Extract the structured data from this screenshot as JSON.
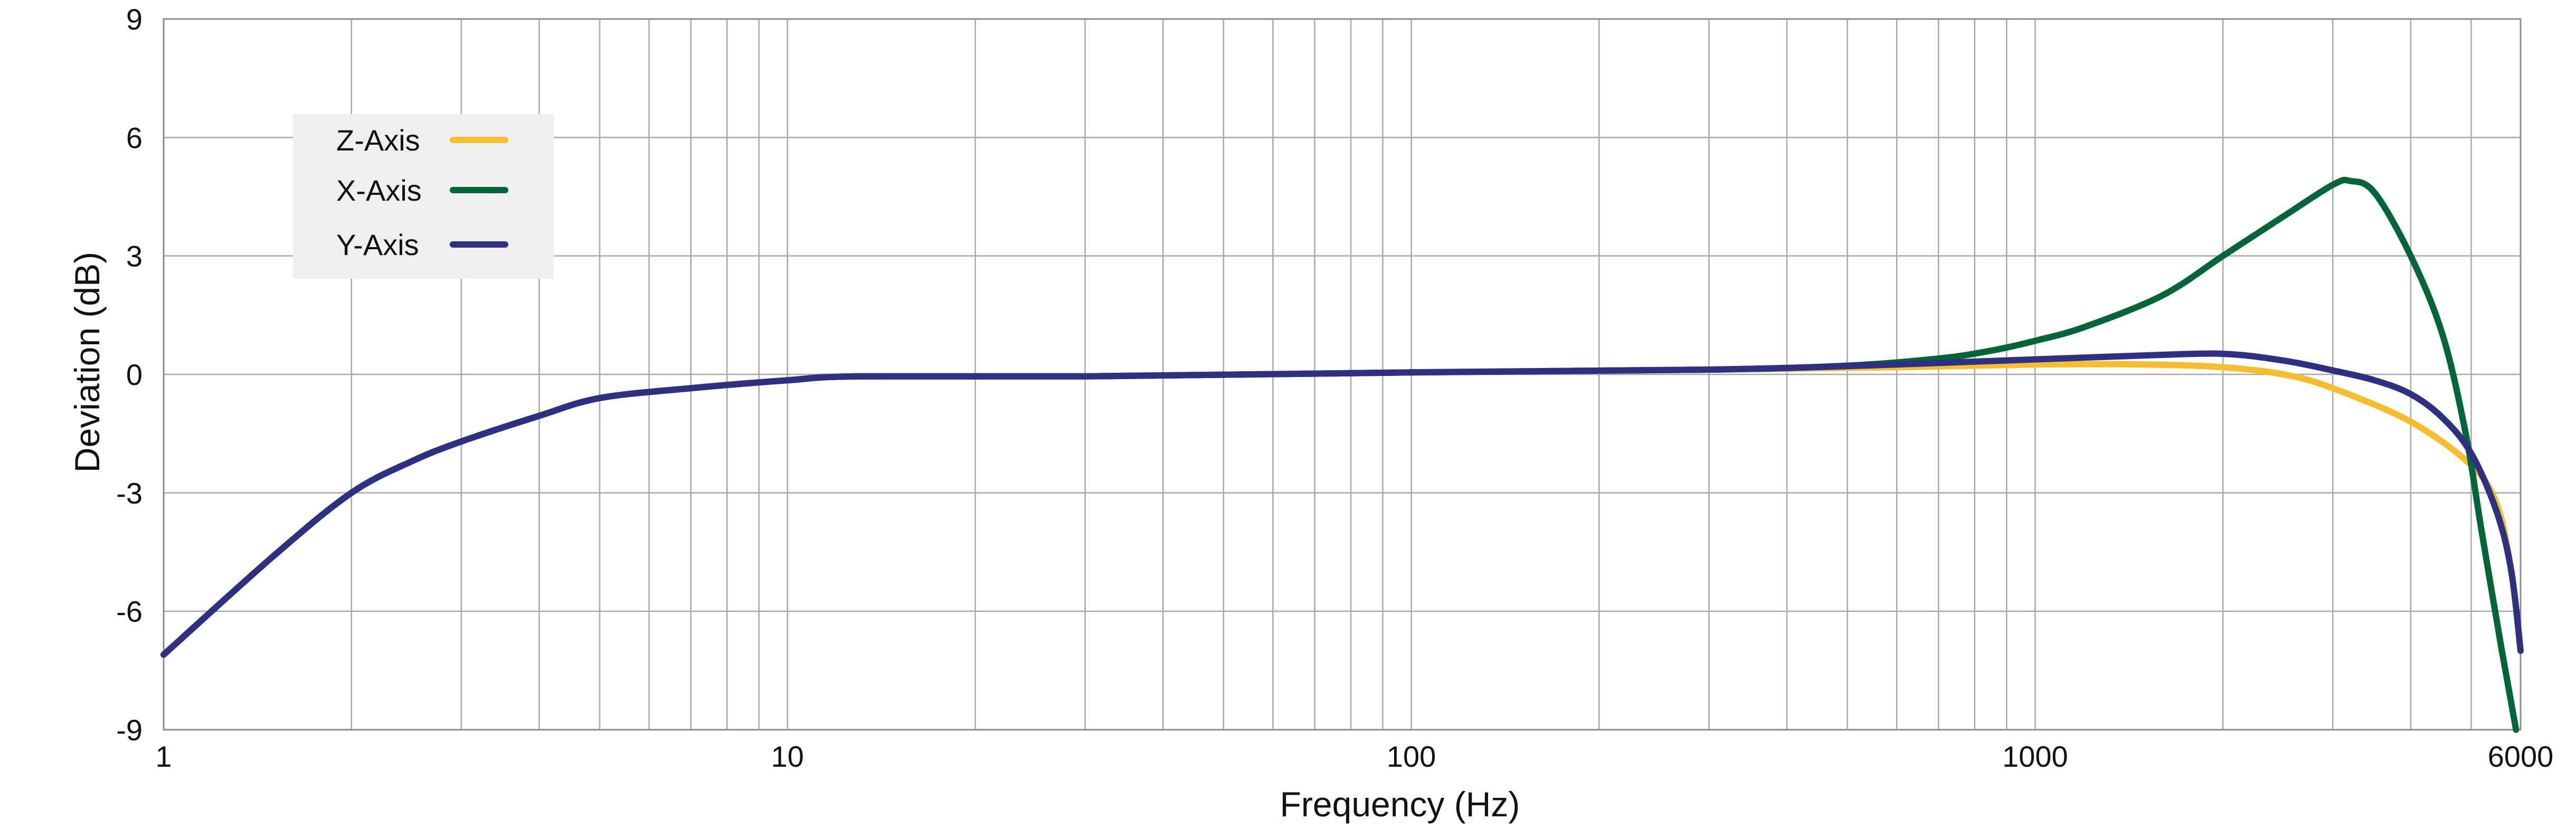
{
  "chart_data": {
    "type": "line",
    "title": "",
    "xlabel": "Frequency (Hz)",
    "ylabel": "Deviation (dB)",
    "x_scale": "log",
    "xlim": [
      1,
      6000
    ],
    "ylim": [
      -9,
      9
    ],
    "x_major_ticks": [
      {
        "value": 1,
        "label": "1"
      },
      {
        "value": 10,
        "label": "10"
      },
      {
        "value": 100,
        "label": "100"
      },
      {
        "value": 1000,
        "label": "1000"
      },
      {
        "value": 6000,
        "label": "6000"
      }
    ],
    "y_ticks": [
      {
        "value": -9,
        "label": "-9"
      },
      {
        "value": -6,
        "label": "-6"
      },
      {
        "value": -3,
        "label": "-3"
      },
      {
        "value": 0,
        "label": "0"
      },
      {
        "value": 3,
        "label": "3"
      },
      {
        "value": 6,
        "label": "6"
      },
      {
        "value": 9,
        "label": "9"
      }
    ],
    "grid": true,
    "legend_position": "top-left",
    "series": [
      {
        "name": "Z-Axis",
        "color": "#F4BE2E",
        "points": [
          [
            1,
            -7.1
          ],
          [
            1.5,
            -4.6
          ],
          [
            2,
            -3.0
          ],
          [
            2.5,
            -2.2
          ],
          [
            3,
            -1.7
          ],
          [
            4,
            -1.05
          ],
          [
            5,
            -0.6
          ],
          [
            7,
            -0.35
          ],
          [
            10,
            -0.15
          ],
          [
            13,
            -0.05
          ],
          [
            30,
            -0.05
          ],
          [
            100,
            0.05
          ],
          [
            300,
            0.12
          ],
          [
            600,
            0.18
          ],
          [
            1000,
            0.25
          ],
          [
            1500,
            0.25
          ],
          [
            2000,
            0.18
          ],
          [
            2500,
            0.0
          ],
          [
            3000,
            -0.35
          ],
          [
            4000,
            -1.2
          ],
          [
            5000,
            -2.3
          ],
          [
            5500,
            -3.3
          ],
          [
            5800,
            -5.0
          ],
          [
            6000,
            -7.0
          ]
        ]
      },
      {
        "name": "X-Axis",
        "color": "#00663A",
        "points": [
          [
            1,
            -7.1
          ],
          [
            1.5,
            -4.6
          ],
          [
            2,
            -3.0
          ],
          [
            2.5,
            -2.2
          ],
          [
            3,
            -1.7
          ],
          [
            4,
            -1.05
          ],
          [
            5,
            -0.6
          ],
          [
            7,
            -0.35
          ],
          [
            10,
            -0.15
          ],
          [
            13,
            -0.05
          ],
          [
            30,
            -0.05
          ],
          [
            100,
            0.05
          ],
          [
            300,
            0.12
          ],
          [
            500,
            0.22
          ],
          [
            700,
            0.4
          ],
          [
            850,
            0.6
          ],
          [
            1000,
            0.85
          ],
          [
            1200,
            1.2
          ],
          [
            1600,
            2.0
          ],
          [
            2000,
            3.0
          ],
          [
            2500,
            4.0
          ],
          [
            3000,
            4.8
          ],
          [
            3200,
            4.9
          ],
          [
            3500,
            4.6
          ],
          [
            4000,
            3.0
          ],
          [
            4500,
            1.0
          ],
          [
            4900,
            -1.5
          ],
          [
            5200,
            -4.0
          ],
          [
            5600,
            -7.0
          ],
          [
            5900,
            -9.0
          ]
        ]
      },
      {
        "name": "Y-Axis",
        "color": "#2E3081",
        "points": [
          [
            1,
            -7.1
          ],
          [
            1.5,
            -4.6
          ],
          [
            2,
            -3.0
          ],
          [
            2.5,
            -2.2
          ],
          [
            3,
            -1.7
          ],
          [
            4,
            -1.05
          ],
          [
            5,
            -0.6
          ],
          [
            7,
            -0.35
          ],
          [
            10,
            -0.15
          ],
          [
            13,
            -0.05
          ],
          [
            30,
            -0.05
          ],
          [
            100,
            0.05
          ],
          [
            300,
            0.12
          ],
          [
            600,
            0.25
          ],
          [
            1000,
            0.38
          ],
          [
            1500,
            0.48
          ],
          [
            2000,
            0.52
          ],
          [
            2500,
            0.35
          ],
          [
            3000,
            0.1
          ],
          [
            3500,
            -0.15
          ],
          [
            4000,
            -0.5
          ],
          [
            4500,
            -1.1
          ],
          [
            5000,
            -2.0
          ],
          [
            5500,
            -3.5
          ],
          [
            5800,
            -5.0
          ],
          [
            6000,
            -7.0
          ]
        ]
      }
    ]
  }
}
